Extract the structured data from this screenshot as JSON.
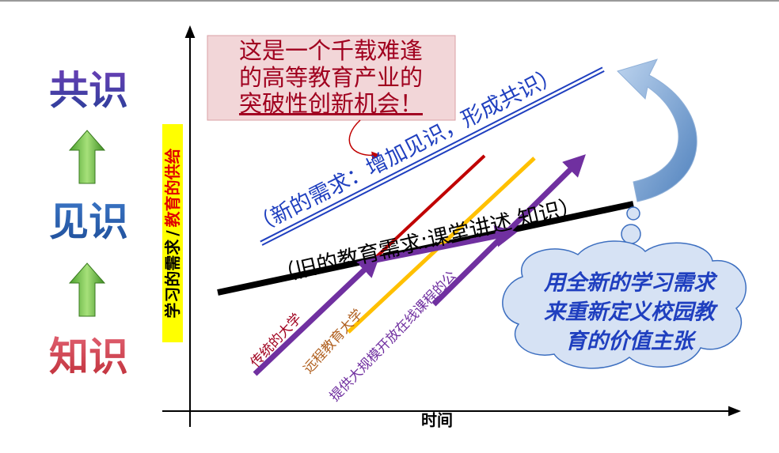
{
  "labels": {
    "consensus": "共识",
    "insight": "见识",
    "knowledge": "知识"
  },
  "axes": {
    "y_label_part1": "学习的需求",
    "y_label_sep": "/",
    "y_label_part2": "教育的供给",
    "x_label": "时间"
  },
  "callout": {
    "lines": [
      "这是一个千载难逢",
      "的高等教育产业的",
      "突破性创新机会！"
    ]
  },
  "trend_lines": {
    "new_demand": "（新的需求：增加见识，形成共识）",
    "old_demand": "（旧的教育需求:课堂讲述 知识）"
  },
  "institutions": {
    "traditional": "传统的大学",
    "distance": "远程教育大学",
    "mooc": "提供大规模开放在线课程的公"
  },
  "cloud": {
    "lines": [
      "用全新的学习需求",
      "来重新定义校园教",
      "育的价值主张"
    ]
  }
}
